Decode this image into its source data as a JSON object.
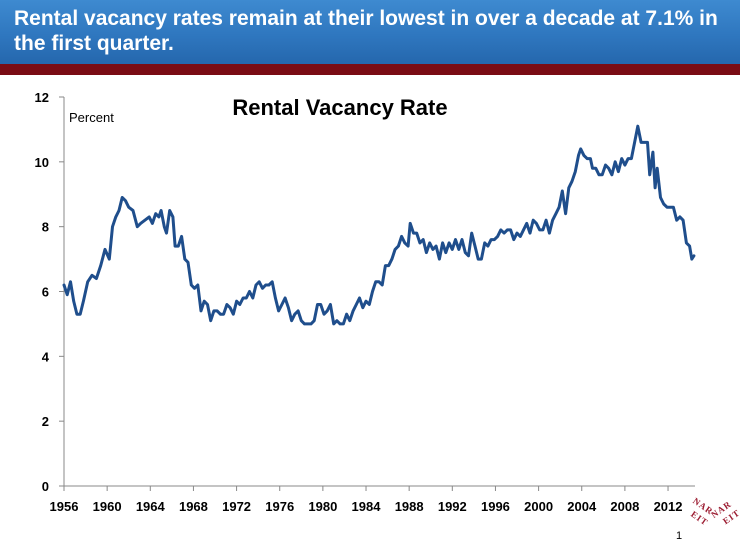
{
  "slide": {
    "headline": "Rental vacancy rates remain at their lowest in over a decade at 7.1% in the first quarter.",
    "page_number": "1",
    "logo_text": "NAREIT"
  },
  "colors": {
    "banner": "#2f77bf",
    "rule": "#7a0c14",
    "line": "#1f4e8c",
    "logo": "#9b1b30"
  },
  "chart_data": {
    "type": "line",
    "title": "Rental Vacancy Rate",
    "ylabel": "Percent",
    "xlabel": "",
    "ylim": [
      0,
      12
    ],
    "yticks": [
      0,
      2,
      4,
      6,
      8,
      10,
      12
    ],
    "xlim": [
      1956,
      2014.5
    ],
    "xticks": [
      1956,
      1960,
      1964,
      1968,
      1972,
      1976,
      1980,
      1984,
      1988,
      1992,
      1996,
      2000,
      2004,
      2008,
      2012
    ],
    "grid": false,
    "legend": "none",
    "series": [
      {
        "name": "",
        "points": [
          [
            1956.0,
            6.2
          ],
          [
            1956.3,
            5.9
          ],
          [
            1956.6,
            6.3
          ],
          [
            1956.9,
            5.7
          ],
          [
            1957.2,
            5.3
          ],
          [
            1957.5,
            5.3
          ],
          [
            1957.8,
            5.7
          ],
          [
            1958.2,
            6.3
          ],
          [
            1958.6,
            6.5
          ],
          [
            1959.0,
            6.4
          ],
          [
            1959.4,
            6.8
          ],
          [
            1959.8,
            7.3
          ],
          [
            1960.2,
            7.0
          ],
          [
            1960.5,
            8.0
          ],
          [
            1960.8,
            8.3
          ],
          [
            1961.1,
            8.5
          ],
          [
            1961.4,
            8.9
          ],
          [
            1961.7,
            8.8
          ],
          [
            1962.0,
            8.6
          ],
          [
            1962.4,
            8.5
          ],
          [
            1962.8,
            8.0
          ],
          [
            1963.1,
            8.1
          ],
          [
            1963.5,
            8.2
          ],
          [
            1963.9,
            8.3
          ],
          [
            1964.2,
            8.1
          ],
          [
            1964.5,
            8.4
          ],
          [
            1964.8,
            8.3
          ],
          [
            1965.0,
            8.5
          ],
          [
            1965.3,
            8.0
          ],
          [
            1965.5,
            7.8
          ],
          [
            1965.8,
            8.5
          ],
          [
            1966.1,
            8.3
          ],
          [
            1966.3,
            7.4
          ],
          [
            1966.6,
            7.4
          ],
          [
            1966.9,
            7.7
          ],
          [
            1967.2,
            7.0
          ],
          [
            1967.5,
            6.9
          ],
          [
            1967.8,
            6.2
          ],
          [
            1968.1,
            6.1
          ],
          [
            1968.4,
            6.2
          ],
          [
            1968.7,
            5.4
          ],
          [
            1969.0,
            5.7
          ],
          [
            1969.3,
            5.6
          ],
          [
            1969.6,
            5.1
          ],
          [
            1969.9,
            5.4
          ],
          [
            1970.2,
            5.4
          ],
          [
            1970.5,
            5.3
          ],
          [
            1970.8,
            5.3
          ],
          [
            1971.1,
            5.6
          ],
          [
            1971.4,
            5.5
          ],
          [
            1971.7,
            5.3
          ],
          [
            1972.0,
            5.7
          ],
          [
            1972.3,
            5.6
          ],
          [
            1972.6,
            5.8
          ],
          [
            1972.9,
            5.8
          ],
          [
            1973.2,
            6.0
          ],
          [
            1973.5,
            5.8
          ],
          [
            1973.8,
            6.2
          ],
          [
            1974.1,
            6.3
          ],
          [
            1974.4,
            6.1
          ],
          [
            1974.7,
            6.2
          ],
          [
            1975.0,
            6.2
          ],
          [
            1975.3,
            6.3
          ],
          [
            1975.6,
            5.8
          ],
          [
            1975.9,
            5.4
          ],
          [
            1976.2,
            5.6
          ],
          [
            1976.5,
            5.8
          ],
          [
            1976.8,
            5.5
          ],
          [
            1977.1,
            5.1
          ],
          [
            1977.4,
            5.3
          ],
          [
            1977.7,
            5.4
          ],
          [
            1978.0,
            5.1
          ],
          [
            1978.3,
            5.0
          ],
          [
            1978.6,
            5.0
          ],
          [
            1978.9,
            5.0
          ],
          [
            1979.2,
            5.1
          ],
          [
            1979.5,
            5.6
          ],
          [
            1979.8,
            5.6
          ],
          [
            1980.1,
            5.3
          ],
          [
            1980.4,
            5.4
          ],
          [
            1980.7,
            5.6
          ],
          [
            1981.0,
            5.0
          ],
          [
            1981.3,
            5.1
          ],
          [
            1981.6,
            5.0
          ],
          [
            1981.9,
            5.0
          ],
          [
            1982.2,
            5.3
          ],
          [
            1982.5,
            5.1
          ],
          [
            1982.8,
            5.4
          ],
          [
            1983.1,
            5.6
          ],
          [
            1983.4,
            5.8
          ],
          [
            1983.7,
            5.5
          ],
          [
            1984.0,
            5.7
          ],
          [
            1984.3,
            5.6
          ],
          [
            1984.6,
            6.0
          ],
          [
            1984.9,
            6.3
          ],
          [
            1985.2,
            6.3
          ],
          [
            1985.5,
            6.2
          ],
          [
            1985.8,
            6.8
          ],
          [
            1986.1,
            6.8
          ],
          [
            1986.4,
            7.0
          ],
          [
            1986.7,
            7.3
          ],
          [
            1987.0,
            7.4
          ],
          [
            1987.3,
            7.7
          ],
          [
            1987.6,
            7.5
          ],
          [
            1987.9,
            7.4
          ],
          [
            1988.1,
            8.1
          ],
          [
            1988.4,
            7.8
          ],
          [
            1988.7,
            7.8
          ],
          [
            1989.0,
            7.5
          ],
          [
            1989.3,
            7.6
          ],
          [
            1989.6,
            7.2
          ],
          [
            1989.9,
            7.5
          ],
          [
            1990.2,
            7.3
          ],
          [
            1990.5,
            7.4
          ],
          [
            1990.8,
            7.0
          ],
          [
            1991.1,
            7.5
          ],
          [
            1991.4,
            7.2
          ],
          [
            1991.7,
            7.5
          ],
          [
            1992.0,
            7.3
          ],
          [
            1992.3,
            7.6
          ],
          [
            1992.6,
            7.3
          ],
          [
            1992.9,
            7.6
          ],
          [
            1993.2,
            7.2
          ],
          [
            1993.5,
            7.1
          ],
          [
            1993.8,
            7.8
          ],
          [
            1994.1,
            7.4
          ],
          [
            1994.4,
            7.0
          ],
          [
            1994.7,
            7.0
          ],
          [
            1995.0,
            7.5
          ],
          [
            1995.3,
            7.4
          ],
          [
            1995.6,
            7.6
          ],
          [
            1995.9,
            7.6
          ],
          [
            1996.2,
            7.7
          ],
          [
            1996.5,
            7.9
          ],
          [
            1996.8,
            7.8
          ],
          [
            1997.1,
            7.9
          ],
          [
            1997.4,
            7.9
          ],
          [
            1997.7,
            7.6
          ],
          [
            1998.0,
            7.8
          ],
          [
            1998.3,
            7.7
          ],
          [
            1998.6,
            7.9
          ],
          [
            1998.9,
            8.1
          ],
          [
            1999.2,
            7.8
          ],
          [
            1999.5,
            8.2
          ],
          [
            1999.8,
            8.1
          ],
          [
            2000.1,
            7.9
          ],
          [
            2000.4,
            7.9
          ],
          [
            2000.7,
            8.2
          ],
          [
            2001.0,
            7.8
          ],
          [
            2001.3,
            8.2
          ],
          [
            2001.6,
            8.4
          ],
          [
            2001.9,
            8.6
          ],
          [
            2002.2,
            9.1
          ],
          [
            2002.5,
            8.4
          ],
          [
            2002.8,
            9.2
          ],
          [
            2003.1,
            9.4
          ],
          [
            2003.4,
            9.7
          ],
          [
            2003.7,
            10.2
          ],
          [
            2003.9,
            10.4
          ],
          [
            2004.2,
            10.2
          ],
          [
            2004.5,
            10.1
          ],
          [
            2004.8,
            10.1
          ],
          [
            2005.0,
            9.8
          ],
          [
            2005.3,
            9.8
          ],
          [
            2005.6,
            9.6
          ],
          [
            2005.9,
            9.6
          ],
          [
            2006.2,
            9.9
          ],
          [
            2006.5,
            9.8
          ],
          [
            2006.8,
            9.6
          ],
          [
            2007.1,
            10.0
          ],
          [
            2007.4,
            9.7
          ],
          [
            2007.7,
            10.1
          ],
          [
            2008.0,
            9.9
          ],
          [
            2008.3,
            10.1
          ],
          [
            2008.6,
            10.1
          ],
          [
            2008.9,
            10.6
          ],
          [
            2009.2,
            11.1
          ],
          [
            2009.5,
            10.6
          ],
          [
            2009.8,
            10.6
          ],
          [
            2010.1,
            10.6
          ],
          [
            2010.3,
            9.6
          ],
          [
            2010.6,
            10.3
          ],
          [
            2010.8,
            9.2
          ],
          [
            2011.0,
            9.8
          ],
          [
            2011.3,
            8.9
          ],
          [
            2011.6,
            8.7
          ],
          [
            2011.9,
            8.6
          ],
          [
            2012.2,
            8.6
          ],
          [
            2012.5,
            8.6
          ],
          [
            2012.8,
            8.2
          ],
          [
            2013.1,
            8.3
          ],
          [
            2013.4,
            8.2
          ],
          [
            2013.7,
            7.5
          ],
          [
            2014.0,
            7.4
          ],
          [
            2014.2,
            7.0
          ],
          [
            2014.4,
            7.1
          ]
        ]
      }
    ]
  }
}
